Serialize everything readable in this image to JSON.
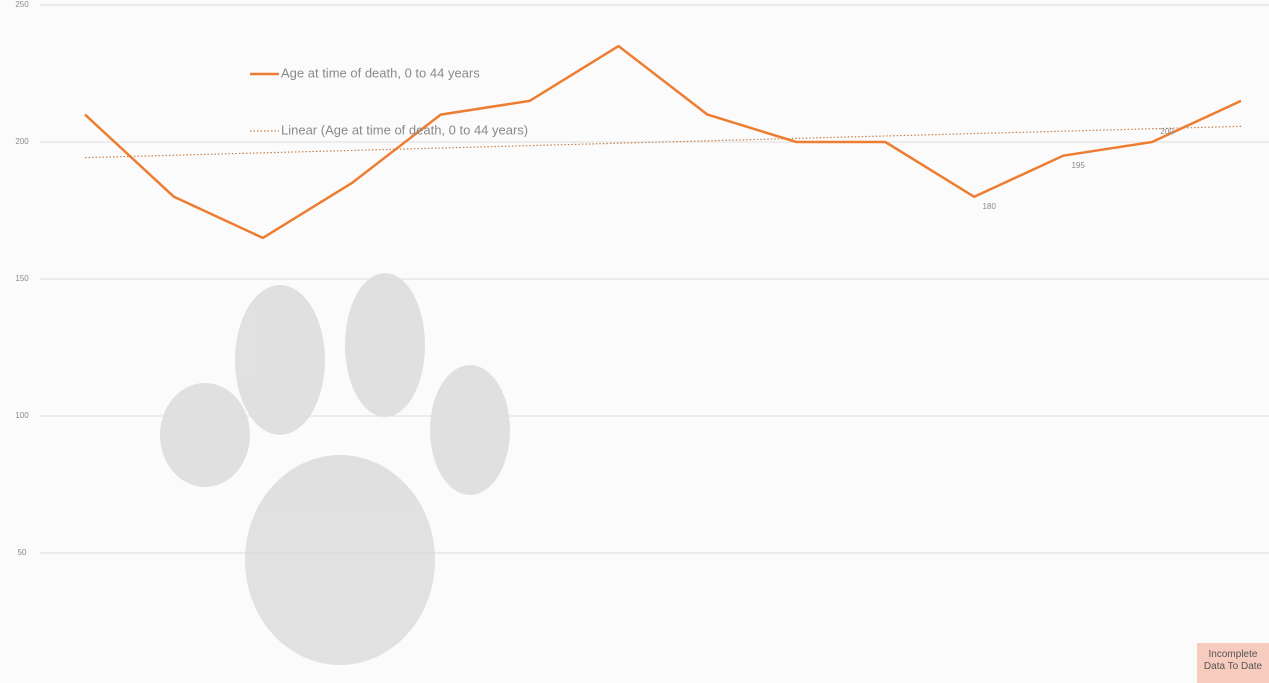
{
  "chart_data": {
    "type": "line",
    "ylim": [
      0,
      250
    ],
    "yticks": [
      50,
      100,
      150,
      200,
      250
    ],
    "grid": true,
    "series": [
      {
        "name": "Age at time of death, 0 to 44 years",
        "color": "#ed7d31",
        "values": [
          210,
          180,
          165,
          185,
          210,
          215,
          235,
          210,
          200,
          200,
          180,
          195,
          200,
          215
        ],
        "value_labels": [
          null,
          null,
          null,
          null,
          null,
          null,
          null,
          null,
          null,
          null,
          "180",
          "195",
          "200",
          null
        ]
      }
    ],
    "trendline": {
      "name": "Linear (Age at time of death, 0 to 44 years)",
      "kind": "linear",
      "color": "#c5804a"
    },
    "annotation": "Incomplete Data To Date"
  }
}
